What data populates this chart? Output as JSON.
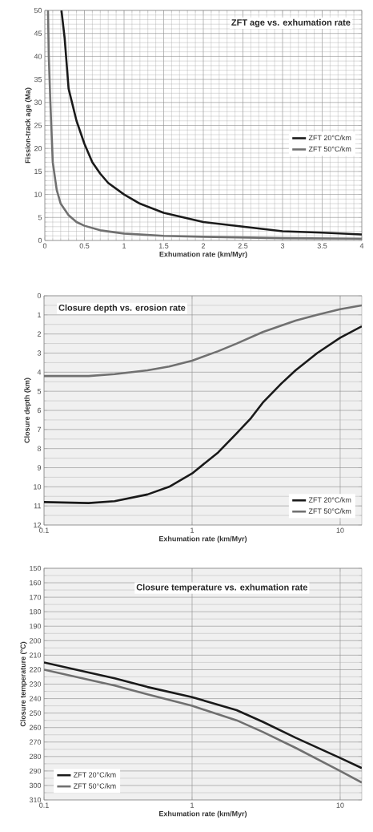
{
  "chart_data": [
    {
      "type": "line",
      "title": "ZFT age vs. exhumation rate",
      "xlabel": "Exhumation rate (km/Myr)",
      "ylabel": "Fission-track age (Ma)",
      "xlim": [
        0,
        4
      ],
      "xticks": [
        0,
        0.5,
        1,
        1.5,
        2,
        2.5,
        3,
        3.5,
        4
      ],
      "ylim": [
        0,
        50
      ],
      "yticks": [
        0,
        5,
        10,
        15,
        20,
        25,
        30,
        35,
        40,
        45,
        50
      ],
      "grid": true,
      "legend": "right",
      "series": [
        {
          "name": "ZFT 20°C/km",
          "color": "#1a1a1a",
          "x": [
            0.21,
            0.25,
            0.3,
            0.4,
            0.5,
            0.6,
            0.7,
            0.8,
            1,
            1.2,
            1.5,
            2,
            2.5,
            3,
            3.5,
            4
          ],
          "values": [
            50,
            44,
            33,
            26,
            21,
            17,
            14.5,
            12.5,
            10,
            8,
            6,
            4,
            3,
            2,
            1.7,
            1.3
          ]
        },
        {
          "name": "ZFT 50°C/km",
          "color": "#707070",
          "x": [
            0.04,
            0.05,
            0.07,
            0.1,
            0.15,
            0.2,
            0.3,
            0.4,
            0.5,
            0.7,
            1,
            1.5,
            2,
            3,
            4
          ],
          "values": [
            50,
            40,
            30,
            17,
            11,
            8,
            5.5,
            4,
            3.2,
            2.2,
            1.5,
            1,
            0.8,
            0.5,
            0.4
          ]
        }
      ]
    },
    {
      "type": "line",
      "title": "Closure depth vs. erosion rate",
      "xlabel": "Exhumation rate (km/Myr)",
      "ylabel": "Closure depth (km)",
      "log": "x",
      "xlim": [
        0.1,
        14
      ],
      "xticks": [
        0.1,
        1,
        10
      ],
      "ylim": [
        12,
        0
      ],
      "yticks": [
        0,
        1,
        2,
        3,
        4,
        5,
        6,
        7,
        8,
        9,
        10,
        11,
        12
      ],
      "grid": true,
      "legend": "bottom right",
      "series": [
        {
          "name": "ZFT 20°C/km",
          "color": "#1a1a1a",
          "x": [
            0.1,
            0.2,
            0.3,
            0.5,
            0.7,
            1,
            1.5,
            2,
            2.5,
            3,
            4,
            5,
            7,
            10,
            14
          ],
          "values": [
            10.8,
            10.85,
            10.75,
            10.4,
            10,
            9.3,
            8.2,
            7.2,
            6.4,
            5.6,
            4.6,
            3.9,
            3,
            2.2,
            1.6
          ]
        },
        {
          "name": "ZFT 50°C/km",
          "color": "#707070",
          "x": [
            0.1,
            0.2,
            0.3,
            0.5,
            0.7,
            1,
            1.5,
            2,
            3,
            5,
            7,
            10,
            14
          ],
          "values": [
            4.2,
            4.2,
            4.1,
            3.9,
            3.7,
            3.4,
            2.9,
            2.5,
            1.9,
            1.3,
            1,
            0.7,
            0.5
          ]
        }
      ]
    },
    {
      "type": "line",
      "title": "Closure temperature vs. exhumation rate",
      "xlabel": "Exhumation rate (km/Myr)",
      "ylabel": "Closure temperature (°C)",
      "log": "x",
      "xlim": [
        0.1,
        14
      ],
      "xticks": [
        0.1,
        1,
        10
      ],
      "ylim": [
        310,
        150
      ],
      "yticks": [
        150,
        160,
        170,
        180,
        190,
        200,
        210,
        220,
        230,
        240,
        250,
        260,
        270,
        280,
        290,
        300,
        310
      ],
      "grid": true,
      "legend": "bottom left",
      "series": [
        {
          "name": "ZFT 20°C/km",
          "color": "#1a1a1a",
          "x": [
            0.1,
            0.2,
            0.3,
            0.5,
            1,
            2,
            3,
            5,
            10,
            14
          ],
          "values": [
            215,
            222,
            226,
            232,
            239,
            248,
            256,
            267,
            281,
            288
          ]
        },
        {
          "name": "ZFT 50°C/km",
          "color": "#707070",
          "x": [
            0.1,
            0.2,
            0.3,
            0.5,
            1,
            2,
            3,
            5,
            10,
            14
          ],
          "values": [
            220,
            227,
            231,
            237,
            245,
            255,
            263,
            274,
            290,
            298
          ]
        }
      ]
    }
  ]
}
